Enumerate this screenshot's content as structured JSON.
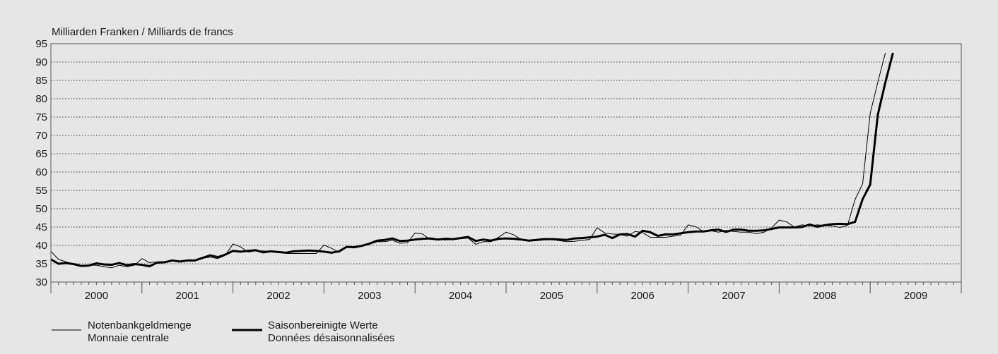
{
  "chart_data": {
    "type": "line",
    "ylabel": "Milliarden Franken / Milliards de francs",
    "ylim": [
      30,
      95
    ],
    "yticks": [
      30,
      35,
      40,
      45,
      50,
      55,
      60,
      65,
      70,
      75,
      80,
      85,
      90,
      95
    ],
    "x_start": "1999-12",
    "x_end": "2009-12",
    "year_labels": [
      "2000",
      "2001",
      "2002",
      "2003",
      "2004",
      "2005",
      "2006",
      "2007",
      "2008",
      "2009"
    ],
    "grid": true,
    "legend_position": "bottom-left",
    "series": [
      {
        "name": "Notenbankgeldmenge / Monnaie centrale",
        "legend_line1": "Notenbankgeldmenge",
        "legend_line2": "Monnaie centrale",
        "style": "thin",
        "color": "#000000",
        "start": "1999-12",
        "values": [
          38.4,
          36.2,
          35.5,
          34.9,
          34.3,
          34.6,
          34.6,
          34.2,
          33.9,
          34.6,
          34.2,
          34.6,
          36.4,
          35.3,
          35.5,
          35.6,
          35.7,
          35.7,
          35.8,
          36.0,
          36.5,
          36.8,
          36.4,
          37.3,
          40.4,
          39.6,
          38.2,
          38.5,
          38.5,
          38.3,
          38.2,
          37.8,
          37.8,
          37.8,
          37.8,
          37.8,
          40.1,
          39.2,
          38.1,
          39.6,
          39.6,
          39.9,
          40.3,
          41.0,
          41.0,
          41.4,
          40.6,
          40.7,
          43.4,
          43.1,
          41.6,
          41.6,
          41.5,
          41.6,
          41.8,
          42.0,
          40.3,
          41.0,
          41.0,
          42.2,
          43.6,
          42.9,
          41.6,
          41.2,
          41.3,
          41.5,
          41.6,
          41.3,
          41.0,
          41.1,
          41.4,
          41.6,
          44.8,
          43.4,
          43.1,
          43.0,
          42.5,
          43.8,
          43.5,
          42.2,
          42.2,
          42.2,
          42.5,
          42.8,
          45.6,
          45.1,
          43.8,
          44.0,
          43.6,
          44.1,
          43.8,
          43.6,
          43.6,
          43.2,
          43.6,
          44.8,
          46.9,
          46.4,
          45.0,
          45.6,
          45.3,
          45.6,
          45.4,
          45.3,
          44.9,
          45.4,
          52.5,
          56.8,
          76.0,
          84.5,
          92.5
        ]
      },
      {
        "name": "Saisonbereinigte Werte / Données désaisonnalisées",
        "legend_line1": "Saisonbereinigte Werte",
        "legend_line2": "Données désaisonnalisées",
        "style": "thick",
        "color": "#000000",
        "start": "1999-12",
        "values": [
          36.2,
          35.0,
          35.2,
          34.9,
          34.4,
          34.5,
          35.1,
          34.8,
          34.7,
          35.2,
          34.6,
          34.9,
          34.7,
          34.3,
          35.3,
          35.4,
          35.9,
          35.6,
          35.9,
          35.9,
          36.6,
          37.3,
          36.8,
          37.5,
          38.5,
          38.3,
          38.5,
          38.7,
          38.1,
          38.4,
          38.2,
          38.0,
          38.4,
          38.5,
          38.6,
          38.5,
          38.3,
          38.0,
          38.4,
          39.6,
          39.5,
          39.9,
          40.5,
          41.3,
          41.5,
          41.9,
          41.2,
          41.3,
          41.6,
          41.8,
          41.9,
          41.6,
          41.8,
          41.7,
          42.0,
          42.3,
          41.2,
          41.6,
          41.3,
          41.8,
          41.9,
          41.8,
          41.6,
          41.3,
          41.5,
          41.7,
          41.7,
          41.6,
          41.5,
          41.9,
          42.0,
          42.2,
          42.4,
          42.9,
          42.0,
          43.0,
          43.1,
          42.4,
          44.0,
          43.6,
          42.6,
          43.0,
          43.0,
          43.3,
          43.6,
          43.8,
          43.8,
          44.1,
          44.3,
          43.7,
          44.3,
          44.3,
          44.0,
          44.0,
          44.1,
          44.5,
          44.9,
          44.9,
          44.9,
          45.0,
          45.7,
          45.1,
          45.5,
          45.8,
          45.9,
          45.8,
          46.4,
          52.6,
          56.6,
          75.6,
          84.5,
          92.5
        ]
      }
    ]
  }
}
